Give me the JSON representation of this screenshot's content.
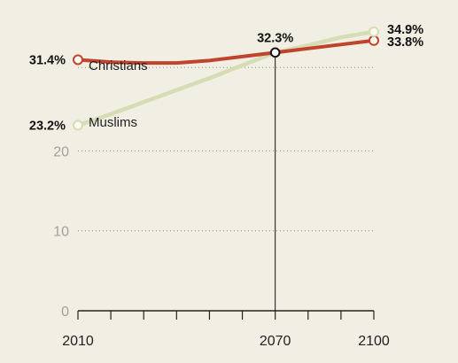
{
  "chart_data": {
    "type": "line",
    "x": [
      2010,
      2020,
      2030,
      2040,
      2050,
      2060,
      2070,
      2080,
      2090,
      2100
    ],
    "xlim": [
      2010,
      2100
    ],
    "ylim": [
      0,
      36
    ],
    "y_ticks": [
      0,
      10,
      20
    ],
    "x_tick_labels": [
      2010,
      2070,
      2100
    ],
    "grid": "dotted horizontal",
    "highlight": {
      "x": 2070,
      "label": "32.3%"
    },
    "series": [
      {
        "name": "Christians",
        "color": "#c0432c",
        "values": [
          31.4,
          31.1,
          31.0,
          31.0,
          31.3,
          31.8,
          32.3,
          32.8,
          33.3,
          33.8
        ],
        "start_label": "31.4%",
        "end_label": "33.8%"
      },
      {
        "name": "Muslims",
        "color": "#d6dcb4",
        "values": [
          23.2,
          24.6,
          26.1,
          27.6,
          29.1,
          30.7,
          32.3,
          33.2,
          34.2,
          34.9
        ],
        "start_label": "23.2%",
        "end_label": "34.9%"
      }
    ]
  }
}
